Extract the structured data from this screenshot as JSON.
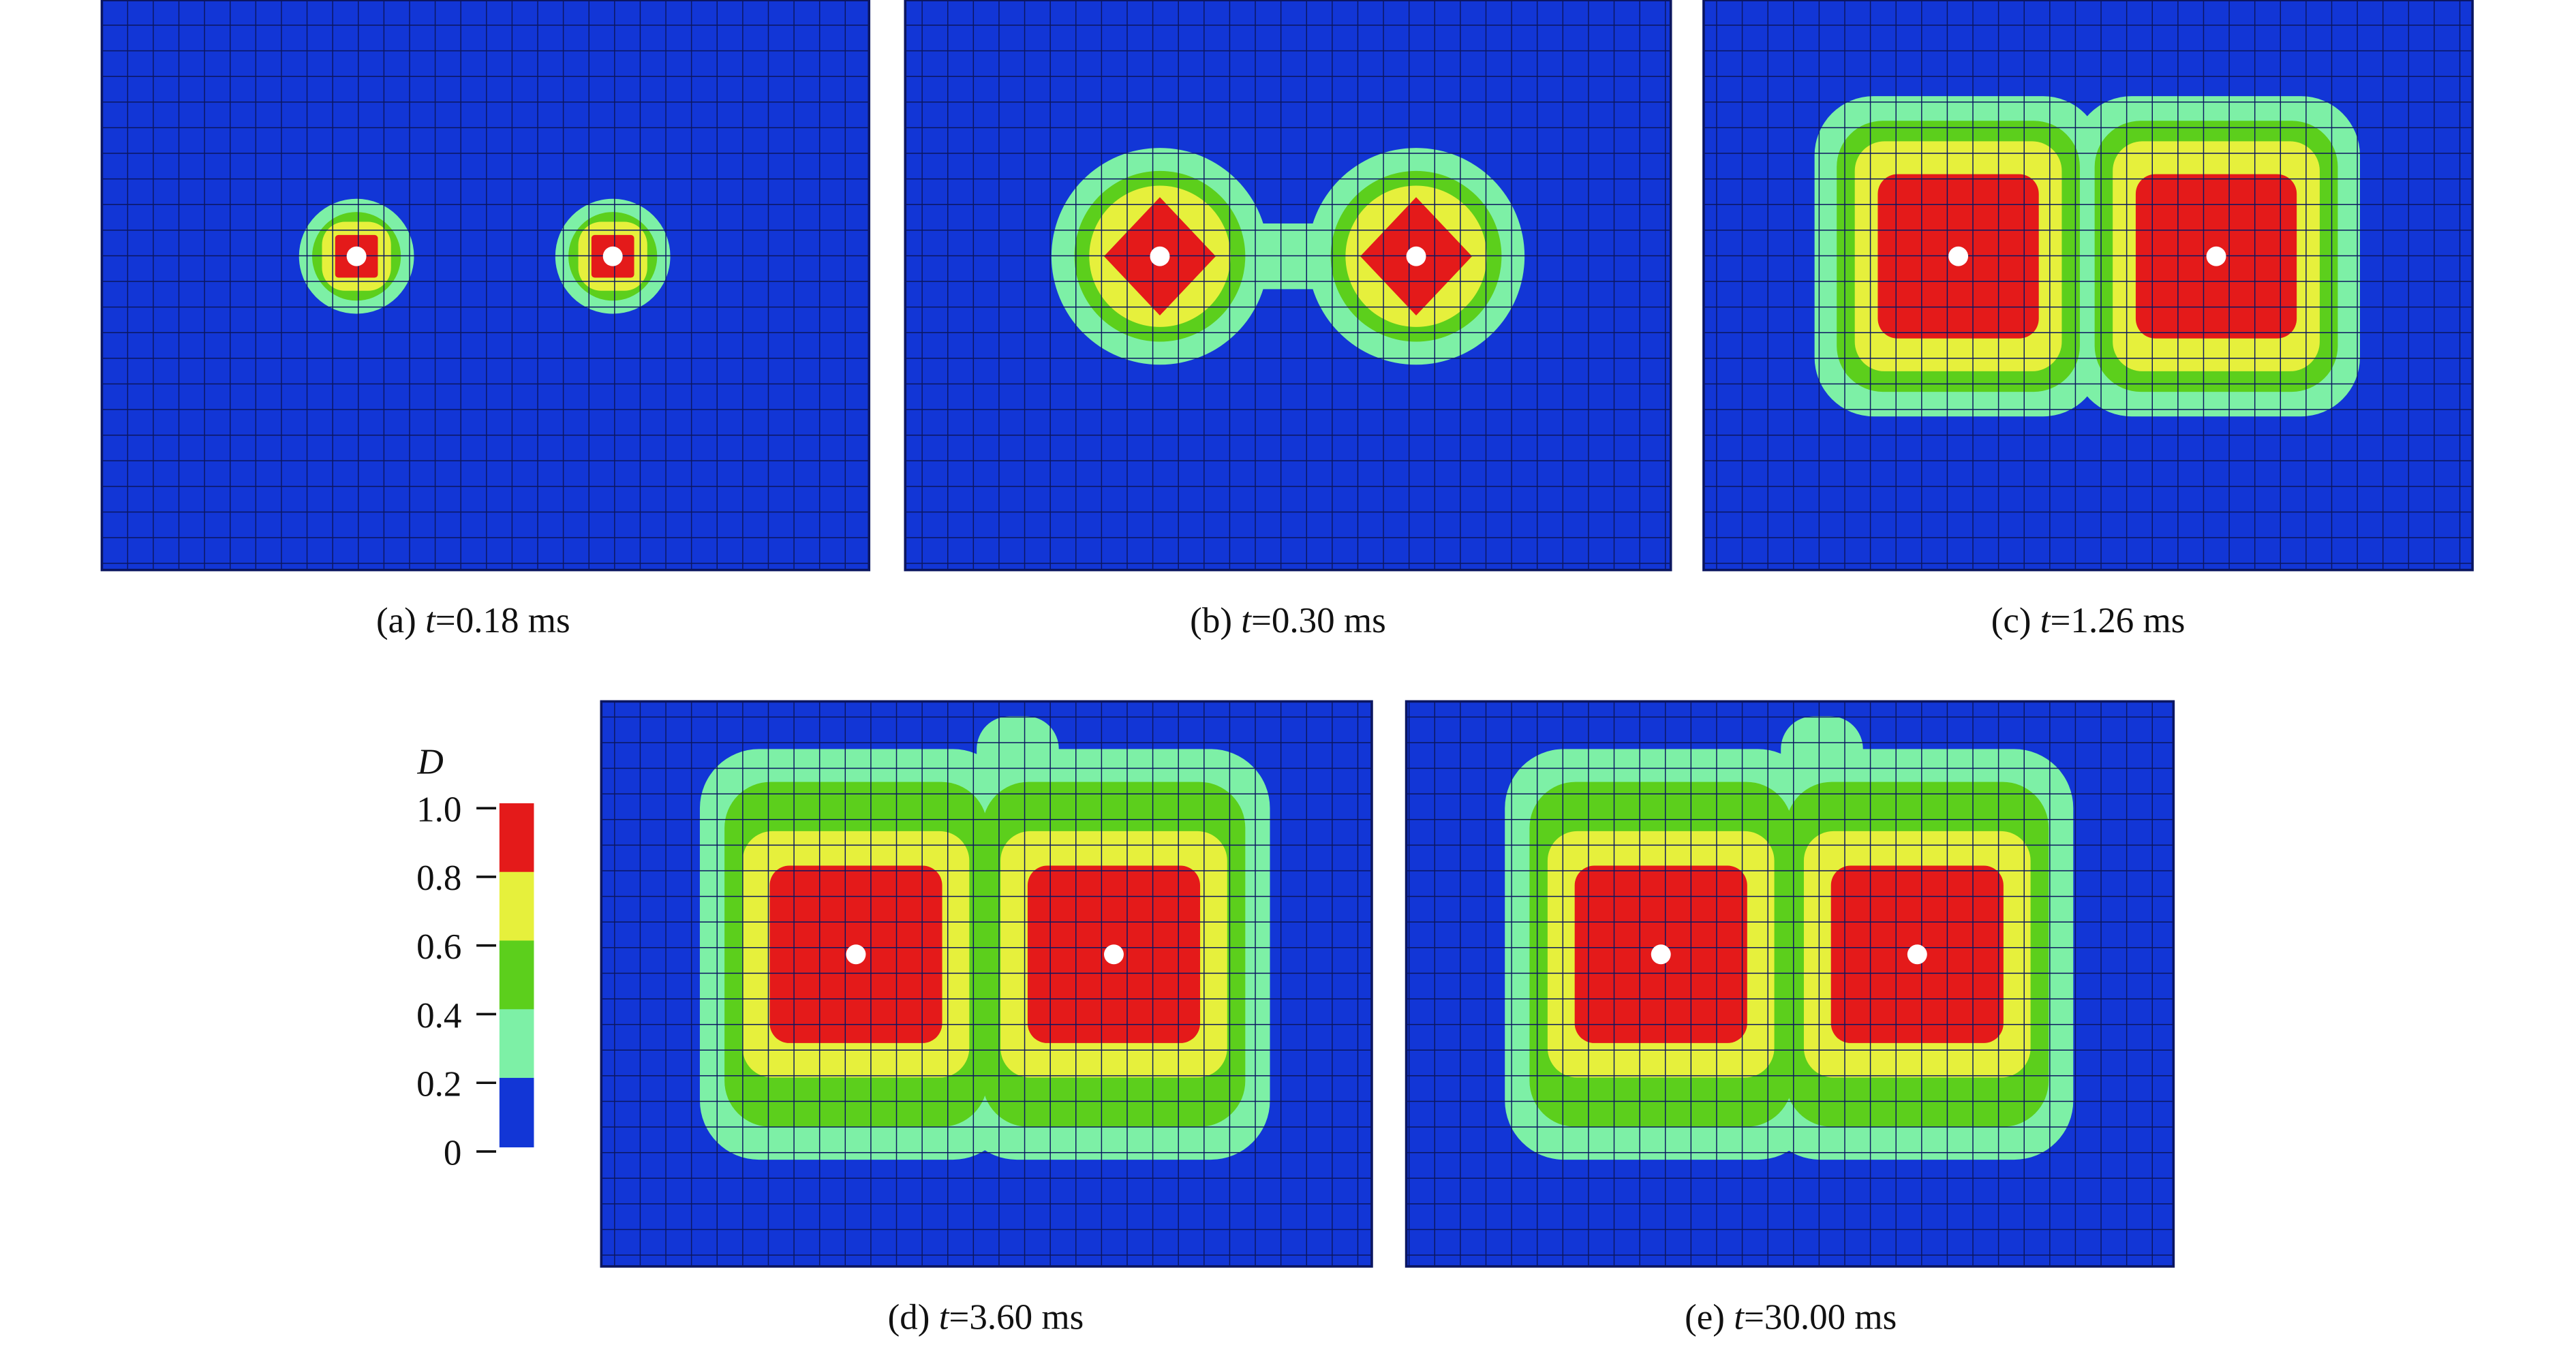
{
  "panels": [
    {
      "tag": "(a)",
      "symbol": "t",
      "time": "=0.18 ms"
    },
    {
      "tag": "(b)",
      "symbol": "t",
      "time": "=0.30 ms"
    },
    {
      "tag": "(c)",
      "symbol": "t",
      "time": "=1.26 ms"
    },
    {
      "tag": "(d)",
      "symbol": "t",
      "time": "=3.60 ms"
    },
    {
      "tag": "(e)",
      "symbol": "t",
      "time": "=30.00 ms"
    }
  ],
  "colorbar": {
    "title": "D",
    "ticks": [
      "1.0",
      "0.8",
      "0.6",
      "0.4",
      "0.2",
      "0"
    ],
    "colors": [
      "#e41a1a",
      "#e6f03c",
      "#5ccf1c",
      "#7df0a6",
      "#1236d6"
    ]
  }
}
